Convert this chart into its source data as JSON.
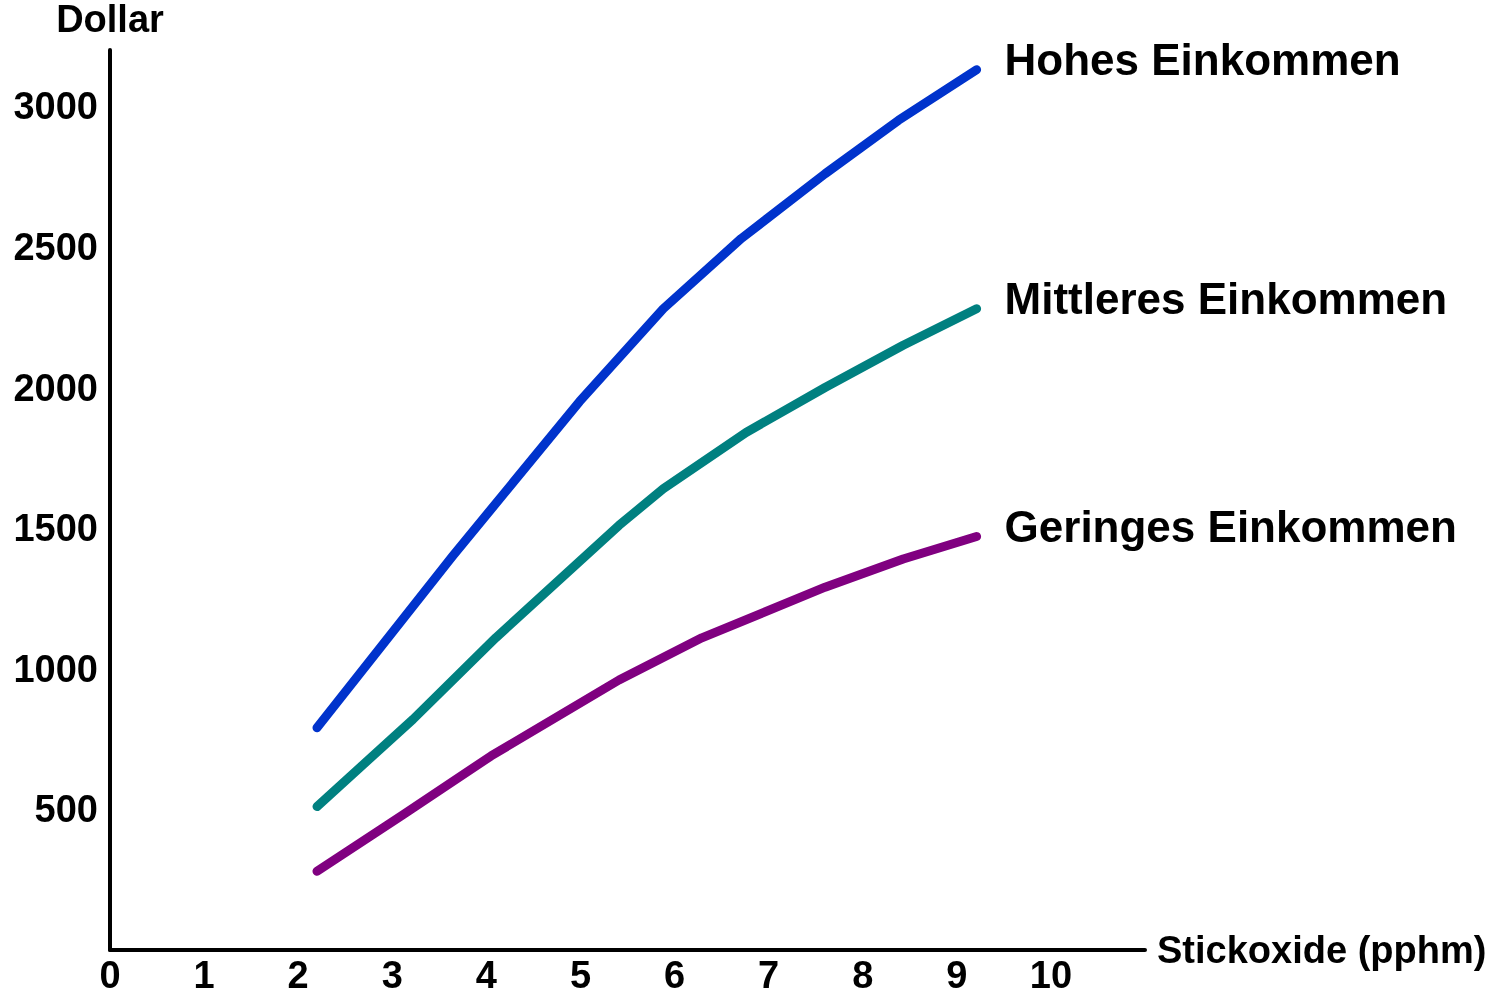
{
  "chart_data": {
    "type": "line",
    "xlabel": "Stickoxide (pphm)",
    "ylabel": "Dollar",
    "xlim": [
      0,
      11
    ],
    "xticks": [
      0,
      1,
      2,
      3,
      4,
      5,
      6,
      7,
      8,
      9,
      10
    ],
    "ylim": [
      0,
      3200
    ],
    "yticks": [
      500,
      1000,
      1500,
      2000,
      2500,
      3000
    ],
    "grid": false,
    "legend": false,
    "marker": "none",
    "line_style": "solid",
    "series": [
      {
        "name": "Hohes Einkommen",
        "color": "#0033cc",
        "x": [
          2.2,
          3.64,
          4.99,
          5.88,
          6.71,
          7.6,
          8.38,
          9.21
        ],
        "values": [
          790,
          1400,
          1950,
          2280,
          2530,
          2760,
          2950,
          3130
        ]
      },
      {
        "name": "Mittleres Einkommen",
        "color": "#008080",
        "x": [
          2.2,
          3.22,
          4.1,
          5.41,
          5.88,
          6.76,
          7.6,
          8.43,
          9.21
        ],
        "values": [
          510,
          820,
          1110,
          1510,
          1640,
          1840,
          2000,
          2150,
          2280
        ]
      },
      {
        "name": "Geringes Einkommen",
        "color": "#800080",
        "x": [
          2.2,
          3.11,
          4.05,
          5.41,
          6.29,
          7.6,
          8.43,
          9.21
        ],
        "values": [
          280,
          480,
          690,
          960,
          1110,
          1290,
          1390,
          1470
        ]
      }
    ]
  }
}
